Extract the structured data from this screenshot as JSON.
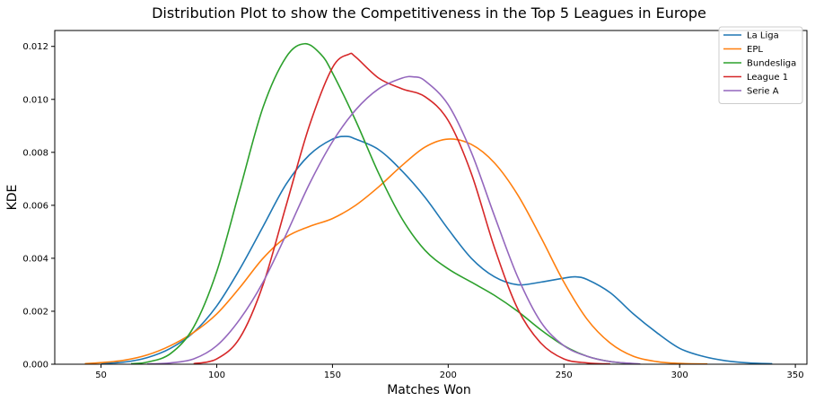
{
  "chart_data": {
    "type": "line",
    "title": "Distribution Plot to show the Competitiveness in the Top 5 Leagues in Europe",
    "xlabel": "Matches Won",
    "ylabel": "KDE",
    "xlim": [
      30,
      355
    ],
    "ylim": [
      0,
      0.0126
    ],
    "x_ticks": [
      50,
      100,
      150,
      200,
      250,
      300,
      350
    ],
    "y_ticks": [
      0.0,
      0.002,
      0.004,
      0.006,
      0.008,
      0.01,
      0.012
    ],
    "x_tick_labels": [
      "50",
      "100",
      "150",
      "200",
      "250",
      "300",
      "350"
    ],
    "y_tick_labels": [
      "0.000",
      "0.002",
      "0.004",
      "0.006",
      "0.008",
      "0.010",
      "0.012"
    ],
    "grid": false,
    "legend_position": "top-right",
    "series": [
      {
        "name": "La Liga",
        "color": "#1f77b4",
        "x": [
          50,
          60,
          70,
          80,
          90,
          100,
          110,
          120,
          130,
          140,
          150,
          156,
          160,
          170,
          180,
          190,
          200,
          210,
          220,
          230,
          240,
          250,
          255,
          260,
          270,
          280,
          290,
          300,
          310,
          320,
          330,
          340
        ],
        "y": [
          3e-05,
          8e-05,
          0.00025,
          0.0006,
          0.0012,
          0.0022,
          0.0036,
          0.0052,
          0.0068,
          0.0079,
          0.0085,
          0.0086,
          0.0085,
          0.0081,
          0.0073,
          0.0063,
          0.0051,
          0.004,
          0.0033,
          0.003,
          0.0031,
          0.00325,
          0.0033,
          0.0032,
          0.0027,
          0.0019,
          0.0012,
          0.0006,
          0.0003,
          0.00013,
          5e-05,
          2e-05
        ]
      },
      {
        "name": "EPL",
        "color": "#ff7f0e",
        "x": [
          43,
          50,
          60,
          70,
          80,
          90,
          100,
          110,
          120,
          130,
          140,
          150,
          160,
          170,
          180,
          190,
          200,
          210,
          220,
          230,
          240,
          250,
          260,
          270,
          280,
          290,
          300,
          312
        ],
        "y": [
          2e-05,
          6e-05,
          0.00015,
          0.00035,
          0.0007,
          0.0012,
          0.0019,
          0.0029,
          0.004,
          0.0048,
          0.0052,
          0.0055,
          0.006,
          0.0067,
          0.0075,
          0.0082,
          0.0085,
          0.0083,
          0.0076,
          0.0064,
          0.0048,
          0.0031,
          0.0017,
          0.0008,
          0.0003,
          0.0001,
          3e-05,
          1e-05
        ]
      },
      {
        "name": "Bundesliga",
        "color": "#2ca02c",
        "x": [
          63,
          70,
          80,
          90,
          100,
          110,
          120,
          130,
          138,
          145,
          150,
          160,
          170,
          180,
          190,
          200,
          210,
          220,
          230,
          240,
          250,
          260,
          270,
          280
        ],
        "y": [
          2e-05,
          8e-05,
          0.0004,
          0.0014,
          0.0035,
          0.0066,
          0.0097,
          0.0116,
          0.0121,
          0.0117,
          0.011,
          0.0092,
          0.0072,
          0.0055,
          0.0043,
          0.0036,
          0.0031,
          0.0026,
          0.002,
          0.0013,
          0.0007,
          0.0003,
          0.0001,
          2e-05
        ]
      },
      {
        "name": "League 1",
        "color": "#d62728",
        "x": [
          90,
          100,
          110,
          120,
          130,
          140,
          150,
          157,
          160,
          170,
          180,
          190,
          200,
          210,
          220,
          230,
          240,
          250,
          260,
          270
        ],
        "y": [
          2e-05,
          0.0002,
          0.001,
          0.003,
          0.006,
          0.009,
          0.0112,
          0.0117,
          0.0116,
          0.0108,
          0.0104,
          0.0101,
          0.0092,
          0.0072,
          0.0044,
          0.0021,
          0.0008,
          0.0002,
          5e-05,
          1e-05
        ]
      },
      {
        "name": "Serie A",
        "color": "#9467bd",
        "x": [
          70,
          80,
          90,
          100,
          110,
          120,
          130,
          140,
          150,
          160,
          170,
          180,
          185,
          190,
          200,
          210,
          220,
          230,
          240,
          250,
          260,
          270,
          283
        ],
        "y": [
          1e-05,
          5e-05,
          0.0002,
          0.0007,
          0.0017,
          0.0031,
          0.0049,
          0.0068,
          0.0084,
          0.0096,
          0.0104,
          0.0108,
          0.01085,
          0.0107,
          0.0098,
          0.008,
          0.0056,
          0.0033,
          0.0016,
          0.0007,
          0.0003,
          0.0001,
          1e-05
        ]
      }
    ]
  }
}
